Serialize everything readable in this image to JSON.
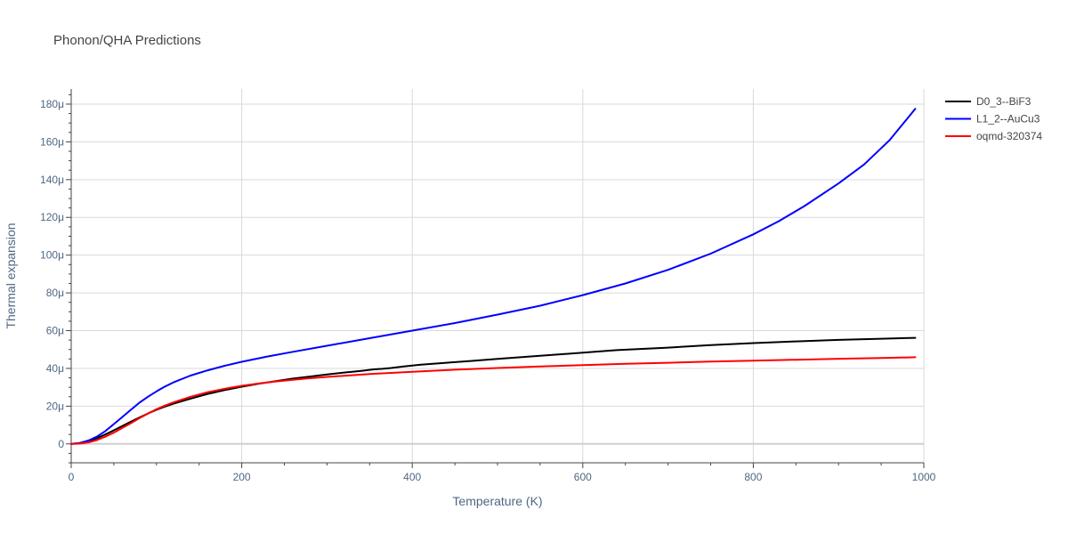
{
  "chart_data": {
    "type": "line",
    "title": "Phonon/QHA Predictions",
    "xlabel": "Temperature (K)",
    "ylabel": "Thermal expansion",
    "xlim": [
      0,
      1000
    ],
    "ylim": [
      -10,
      188
    ],
    "x_ticks": [
      0,
      200,
      400,
      600,
      800,
      1000
    ],
    "x_tick_labels": [
      "0",
      "200",
      "400",
      "600",
      "800",
      "1000"
    ],
    "y_ticks": [
      0,
      20,
      40,
      60,
      80,
      100,
      120,
      140,
      160,
      180
    ],
    "y_tick_labels": [
      "0",
      "20μ",
      "40μ",
      "60μ",
      "80μ",
      "100μ",
      "120μ",
      "140μ",
      "160μ",
      "180μ"
    ],
    "grid": true,
    "legend_position": "top-right",
    "series": [
      {
        "name": "D0_3--BiF3",
        "color": "#000000",
        "x": [
          0,
          10,
          20,
          30,
          40,
          50,
          60,
          70,
          80,
          90,
          100,
          110,
          120,
          140,
          160,
          180,
          200,
          220,
          240,
          260,
          280,
          300,
          320,
          340,
          355,
          365,
          375,
          390,
          410,
          440,
          470,
          500,
          550,
          600,
          640,
          700,
          750,
          800,
          850,
          900,
          950,
          990
        ],
        "y": [
          0,
          0.4,
          1.3,
          3,
          5,
          7.2,
          9.5,
          11.8,
          14,
          16.1,
          18.1,
          19.8,
          21.3,
          24,
          26.5,
          28.5,
          30.3,
          31.9,
          33.3,
          34.6,
          35.7,
          36.8,
          37.8,
          38.7,
          39.5,
          39.8,
          40.2,
          41,
          42,
          43,
          44,
          45,
          46.7,
          48.3,
          49.7,
          51,
          52.3,
          53.4,
          54.3,
          55.1,
          55.7,
          56.2
        ]
      },
      {
        "name": "L1_2--AuCu3",
        "color": "#0000ff",
        "x": [
          0,
          10,
          20,
          30,
          40,
          50,
          60,
          70,
          80,
          90,
          100,
          110,
          120,
          140,
          160,
          180,
          200,
          230,
          260,
          300,
          350,
          400,
          450,
          500,
          550,
          600,
          650,
          700,
          750,
          800,
          830,
          860,
          900,
          930,
          960,
          990
        ],
        "y": [
          0,
          0.5,
          1.8,
          3.8,
          6.8,
          10.5,
          14.3,
          18.1,
          21.8,
          25,
          27.8,
          30.4,
          32.6,
          36.2,
          39,
          41.4,
          43.5,
          46.3,
          48.8,
          52,
          56,
          60,
          64,
          68.5,
          73.2,
          78.8,
          85,
          92.2,
          100.8,
          111,
          118,
          126,
          138,
          148,
          161,
          177.5
        ]
      },
      {
        "name": "oqmd-320374",
        "color": "#ff0000",
        "x": [
          0,
          10,
          20,
          30,
          40,
          50,
          60,
          70,
          80,
          90,
          100,
          110,
          120,
          140,
          160,
          180,
          200,
          220,
          240,
          260,
          280,
          300,
          350,
          400,
          450,
          500,
          550,
          600,
          650,
          700,
          750,
          800,
          850,
          900,
          950,
          990
        ],
        "y": [
          0,
          0.2,
          0.8,
          2,
          3.8,
          6,
          8.5,
          11,
          13.6,
          16,
          18.4,
          20.3,
          22,
          25,
          27.4,
          29.2,
          30.8,
          32,
          33.1,
          34,
          34.8,
          35.5,
          37,
          38.2,
          39.3,
          40.2,
          41,
          41.7,
          42.4,
          43,
          43.6,
          44.1,
          44.6,
          45.1,
          45.5,
          45.9
        ]
      }
    ]
  }
}
